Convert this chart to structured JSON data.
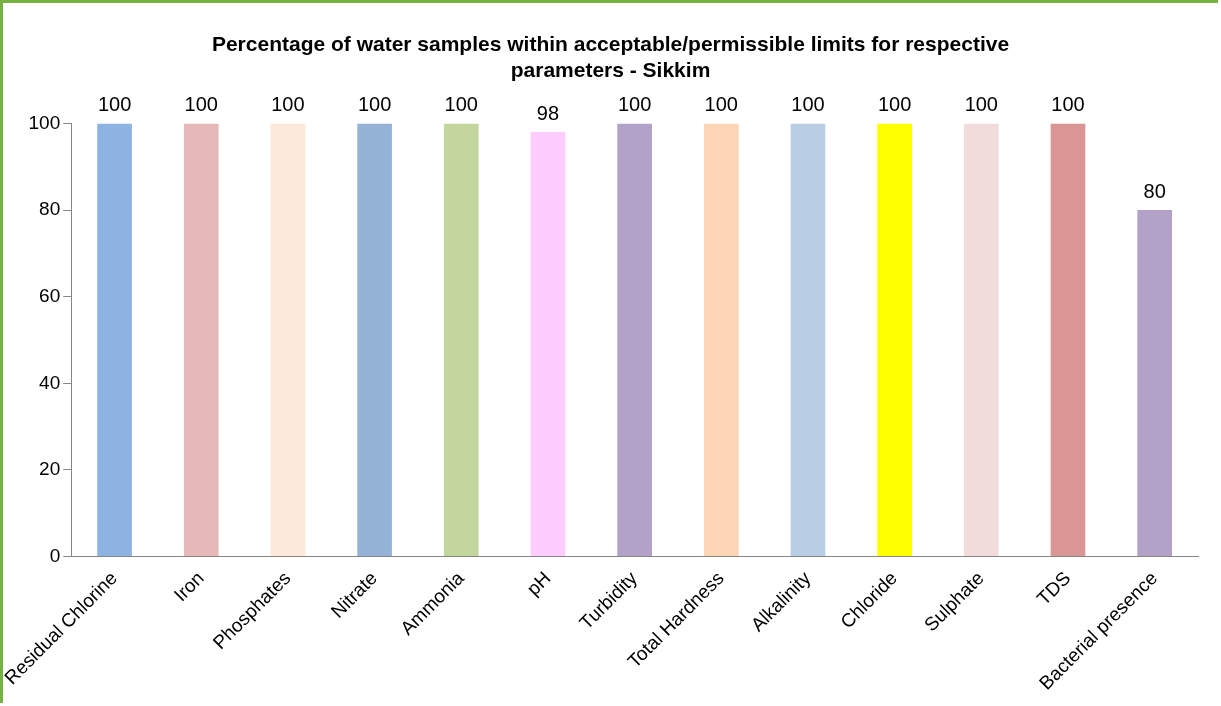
{
  "chart_data": {
    "type": "bar",
    "title": "Percentage of water samples within acceptable/permissible limits for respective parameters - Sikkim",
    "categories": [
      "Residual Chlorine",
      "Iron",
      "Phosphates",
      "Nitrate",
      "Ammonia",
      "pH",
      "Turbidity",
      "Total Hardness",
      "Alkalinity",
      "Chloride",
      "Sulphate",
      "TDS",
      "Bacterial presence"
    ],
    "values": [
      100,
      100,
      100,
      100,
      100,
      98,
      100,
      100,
      100,
      100,
      100,
      100,
      80
    ],
    "colors": [
      "#8db3e2",
      "#e6b9b8",
      "#fde9d9",
      "#95b3d7",
      "#c3d69b",
      "#ffccff",
      "#b2a2c7",
      "#fcd5b5",
      "#b9cde5",
      "#ffff00",
      "#f2dcdb",
      "#d99694",
      "#b2a2c7"
    ],
    "ylim": [
      0,
      100
    ],
    "yticks": [
      0,
      20,
      40,
      60,
      80,
      100
    ],
    "grid": false,
    "legend": false,
    "data_labels": true
  }
}
